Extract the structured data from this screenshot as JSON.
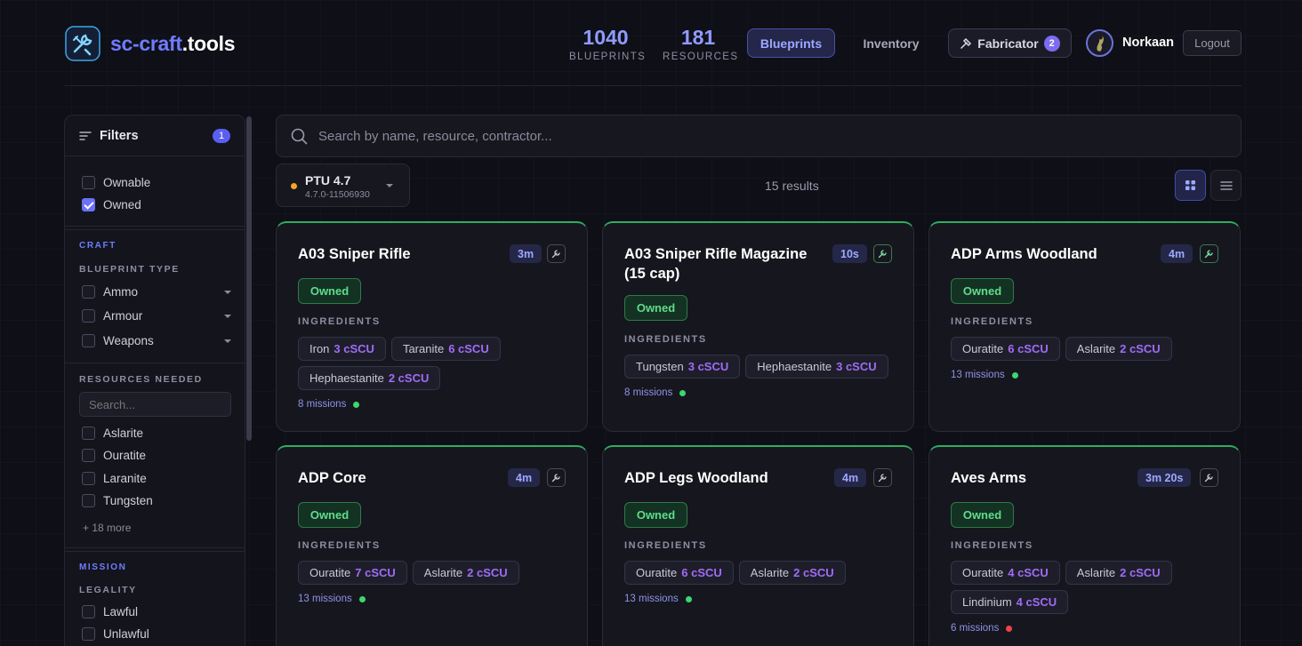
{
  "app": {
    "name_a": "sc-craft",
    "name_b": ".tools"
  },
  "stats": [
    {
      "value": "1040",
      "label": "BLUEPRINTS"
    },
    {
      "value": "181",
      "label": "RESOURCES"
    }
  ],
  "nav": {
    "blueprints": "Blueprints",
    "inventory": "Inventory",
    "fabricator": "Fabricator",
    "fabricator_count": "2"
  },
  "user": {
    "name": "Norkaan",
    "logout": "Logout"
  },
  "filters": {
    "title": "Filters",
    "count": "1",
    "top": [
      {
        "label": "Ownable",
        "checked": false
      },
      {
        "label": "Owned",
        "checked": true
      }
    ],
    "craft_label": "CRAFT",
    "blueprint_type_label": "BLUEPRINT TYPE",
    "blueprint_types": [
      {
        "label": "Ammo",
        "checked": false
      },
      {
        "label": "Armour",
        "checked": false
      },
      {
        "label": "Weapons",
        "checked": false
      }
    ],
    "resources_label": "RESOURCES NEEDED",
    "resources_placeholder": "Search...",
    "resources": [
      {
        "label": "Aslarite",
        "checked": false
      },
      {
        "label": "Ouratite",
        "checked": false
      },
      {
        "label": "Laranite",
        "checked": false
      },
      {
        "label": "Tungsten",
        "checked": false
      }
    ],
    "more": "+ 18 more",
    "mission_label": "MISSION",
    "legality_label": "LEGALITY",
    "legality": [
      {
        "label": "Lawful",
        "checked": false
      },
      {
        "label": "Unlawful",
        "checked": false
      }
    ]
  },
  "search": {
    "placeholder": "Search by name, resource, contractor..."
  },
  "version": {
    "name": "PTU 4.7",
    "build": "4.7.0-11506930",
    "status_color": "#f5a524"
  },
  "results": "15 results",
  "owned_label": "Owned",
  "ingredients_label": "INGREDIENTS",
  "cards": [
    {
      "title": "A03 Sniper Rifle",
      "time": "3m",
      "ingredients": [
        {
          "name": "Iron",
          "qty": "3 cSCU"
        },
        {
          "name": "Taranite",
          "qty": "6 cSCU"
        },
        {
          "name": "Hephaestanite",
          "qty": "2 cSCU"
        }
      ],
      "missions": "8 missions",
      "mission_color": "#3ad86e"
    },
    {
      "title": "A03 Sniper Rifle Magazine (15 cap)",
      "time": "10s",
      "ingredients": [
        {
          "name": "Tungsten",
          "qty": "3 cSCU"
        },
        {
          "name": "Hephaestanite",
          "qty": "3 cSCU"
        }
      ],
      "missions": "8 missions",
      "mission_color": "#3ad86e"
    },
    {
      "title": "ADP Arms Woodland",
      "time": "4m",
      "ingredients": [
        {
          "name": "Ouratite",
          "qty": "6 cSCU"
        },
        {
          "name": "Aslarite",
          "qty": "2 cSCU"
        }
      ],
      "missions": "13 missions",
      "mission_color": "#3ad86e"
    },
    {
      "title": "ADP Core",
      "time": "4m",
      "ingredients": [
        {
          "name": "Ouratite",
          "qty": "7 cSCU"
        },
        {
          "name": "Aslarite",
          "qty": "2 cSCU"
        }
      ],
      "missions": "13 missions",
      "mission_color": "#3ad86e"
    },
    {
      "title": "ADP Legs Woodland",
      "time": "4m",
      "ingredients": [
        {
          "name": "Ouratite",
          "qty": "6 cSCU"
        },
        {
          "name": "Aslarite",
          "qty": "2 cSCU"
        }
      ],
      "missions": "13 missions",
      "mission_color": "#3ad86e"
    },
    {
      "title": "Aves Arms",
      "time": "3m 20s",
      "ingredients": [
        {
          "name": "Ouratite",
          "qty": "4 cSCU"
        },
        {
          "name": "Aslarite",
          "qty": "2 cSCU"
        },
        {
          "name": "Lindinium",
          "qty": "4 cSCU"
        }
      ],
      "missions": "6 missions",
      "mission_color": "#ef4444"
    }
  ],
  "colors": {
    "accent": "#6f7cff",
    "owned": "#5fdc8b",
    "quantity": "#a06cf5"
  }
}
